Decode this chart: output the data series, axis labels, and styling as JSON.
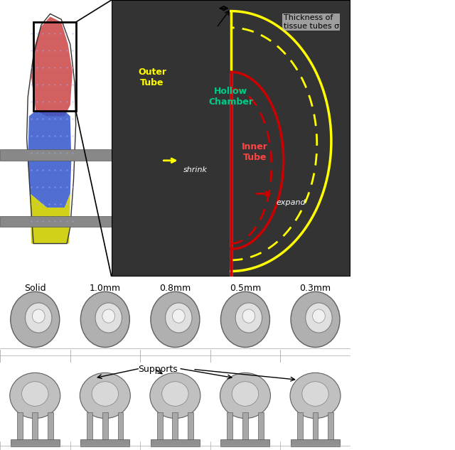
{
  "fig_width": 6.4,
  "fig_height": 6.33,
  "bg_color": "#ffffff",
  "panel_bg": "#808080",
  "outer_tube_color": "#ffff00",
  "inner_tube_color": "#cc0000",
  "hollow_chamber_color": "#00cc00",
  "label_outer_tube": "Outer\nTube",
  "label_hollow_chamber": "Hollow\nChamber",
  "label_inner_tube": "Inner\nTube",
  "label_shrink": "shrink",
  "label_expand": "expand",
  "label_thickness": "Thickness of\ntissue tubes σ",
  "label_supports": "Supports",
  "top_labels": [
    "Solid",
    "1.0mm",
    "0.8mm",
    "0.5mm",
    "0.3mm"
  ],
  "finger_colors": [
    "#cc3333",
    "#3333cc",
    "#cccc00"
  ],
  "gray_bg": "#a0a0a0",
  "panel_border": "#000000",
  "row2_bg": "#dde8ee",
  "row3_bg": "#dde8ee"
}
